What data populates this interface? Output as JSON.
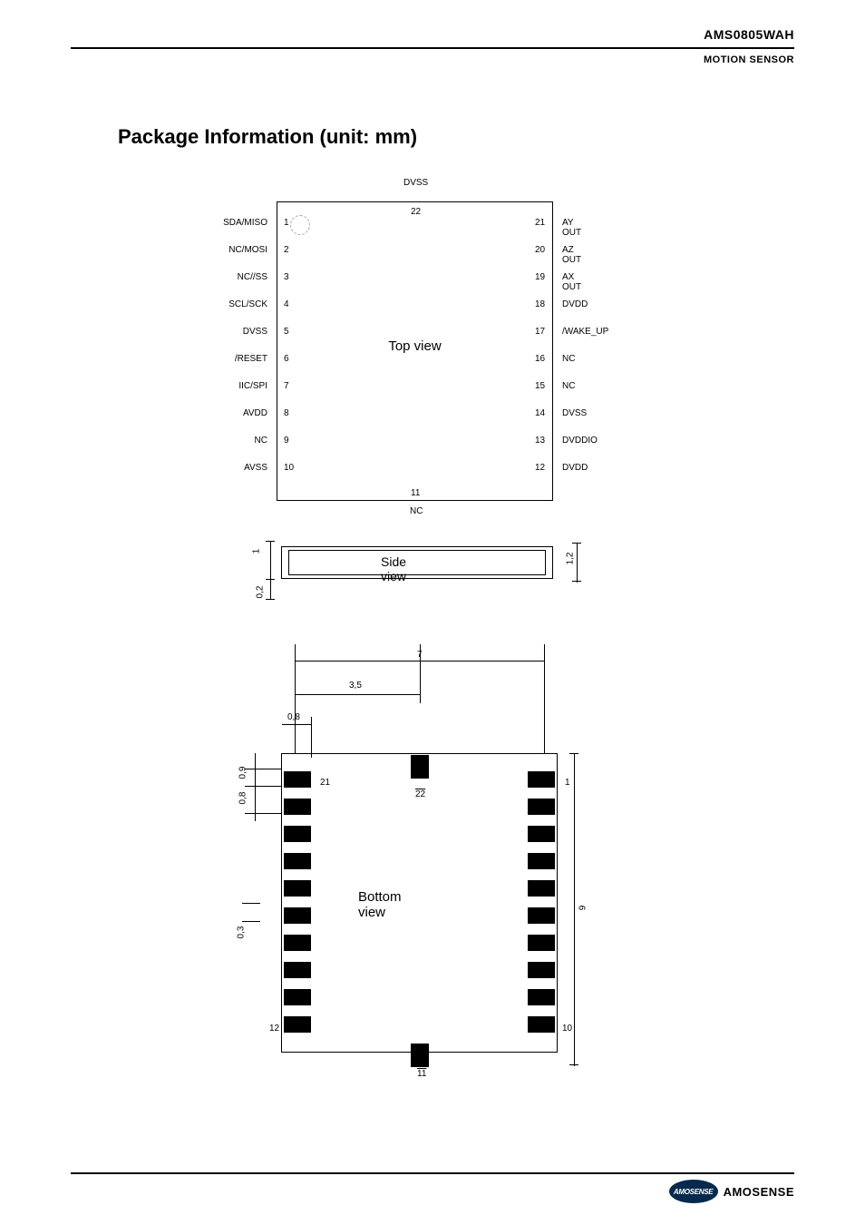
{
  "header": {
    "part_number": "AMS0805WAH",
    "subtitle": "MOTION SENSOR"
  },
  "section_title": "Package Information (unit: mm)",
  "topview": {
    "center_label": "Top view",
    "top_pin": {
      "num": "22",
      "label": "DVSS"
    },
    "bottom_pin": {
      "num": "11",
      "label": "NC"
    },
    "left_pins": [
      {
        "num": "1",
        "label": "SDA/MISO"
      },
      {
        "num": "2",
        "label": "NC/MOSI"
      },
      {
        "num": "3",
        "label": "NC//SS"
      },
      {
        "num": "4",
        "label": "SCL/SCK"
      },
      {
        "num": "5",
        "label": "DVSS"
      },
      {
        "num": "6",
        "label": "/RESET"
      },
      {
        "num": "7",
        "label": "IIC/SPI"
      },
      {
        "num": "8",
        "label": "AVDD"
      },
      {
        "num": "9",
        "label": "NC"
      },
      {
        "num": "10",
        "label": "AVSS"
      }
    ],
    "right_pins": [
      {
        "num": "21",
        "label": "AY OUT"
      },
      {
        "num": "20",
        "label": "AZ OUT"
      },
      {
        "num": "19",
        "label": "AX OUT"
      },
      {
        "num": "18",
        "label": "DVDD"
      },
      {
        "num": "17",
        "label": "/WAKE_UP"
      },
      {
        "num": "16",
        "label": "NC"
      },
      {
        "num": "15",
        "label": "NC"
      },
      {
        "num": "14",
        "label": "DVSS"
      },
      {
        "num": "13",
        "label": "DVDDIO"
      },
      {
        "num": "12",
        "label": "DVDD"
      }
    ]
  },
  "sideview": {
    "label": "Side view",
    "dims": {
      "height": "1",
      "gap": "0,2",
      "total": "1,2"
    }
  },
  "bottomview": {
    "label": "Bottom view",
    "pin_labels": {
      "tl": "21",
      "tc": "22",
      "tr": "1",
      "bl": "12",
      "bc": "11",
      "br": "10"
    },
    "dims": {
      "width_full": "7",
      "width_half": "3,5",
      "pad_w": "0,8",
      "pad_h": "0,9",
      "pitch": "0,8",
      "height": "9",
      "bottom_gap": "0,3"
    }
  },
  "footer": {
    "logo_text": "AMOSENSE",
    "logo_badge": "AMOSENSE"
  },
  "colors": {
    "text": "#000000",
    "bg": "#ffffff",
    "footer_ellipse": "#07294d"
  }
}
